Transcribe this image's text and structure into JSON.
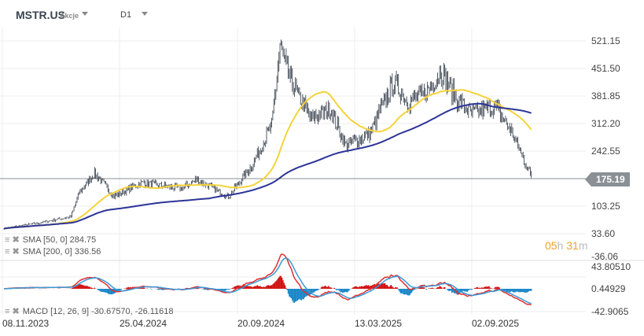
{
  "header": {
    "symbol": "MSTR.US",
    "asset_type": "Akcje",
    "timeframe": "D1"
  },
  "price_axis": [
    "521.15",
    "451.50",
    "381.85",
    "312.20",
    "242.55",
    "175.19",
    "103.25",
    "33.60",
    "-36.06"
  ],
  "macd_axis": [
    "43.80510",
    "0.44929",
    "-42.9065"
  ],
  "current_price": "175.19",
  "timer": {
    "hours": "05",
    "h": "h",
    "minutes": "31",
    "m": "m"
  },
  "legend": {
    "sma50": "SMA [50, 0] 284.75",
    "sma200": "SMA [200, 0] 336.56",
    "macd": "MACD [12, 26, 9] -30.67570, -26.11618"
  },
  "dates": [
    "08.11.2023",
    "25.04.2024",
    "20.09.2024",
    "13.03.2025",
    "02.09.2025"
  ],
  "colors": {
    "sma50": "#f5d33a",
    "sma200": "#2b3497",
    "macd": "#e03030",
    "signal": "#3a9ad9",
    "hist_pos": "#d01010",
    "hist_neg": "#1a86c8",
    "timer": "#f5a02a"
  },
  "chart_data": {
    "type": "candlestick",
    "ylim": [
      -36.06,
      521.15
    ],
    "anchors": [
      [
        0,
        37
      ],
      [
        35,
        51
      ],
      [
        65,
        67
      ],
      [
        73,
        128
      ],
      [
        88,
        180
      ],
      [
        107,
        119
      ],
      [
        134,
        155
      ],
      [
        172,
        139
      ],
      [
        187,
        163
      ],
      [
        218,
        119
      ],
      [
        241,
        200
      ],
      [
        260,
        302
      ],
      [
        268,
        505
      ],
      [
        279,
        413
      ],
      [
        298,
        322
      ],
      [
        317,
        343
      ],
      [
        332,
        251
      ],
      [
        355,
        281
      ],
      [
        378,
        413
      ],
      [
        393,
        362
      ],
      [
        412,
        392
      ],
      [
        424,
        444
      ],
      [
        439,
        373
      ],
      [
        454,
        332
      ],
      [
        477,
        352
      ],
      [
        492,
        291
      ],
      [
        512,
        170
      ]
    ]
  }
}
